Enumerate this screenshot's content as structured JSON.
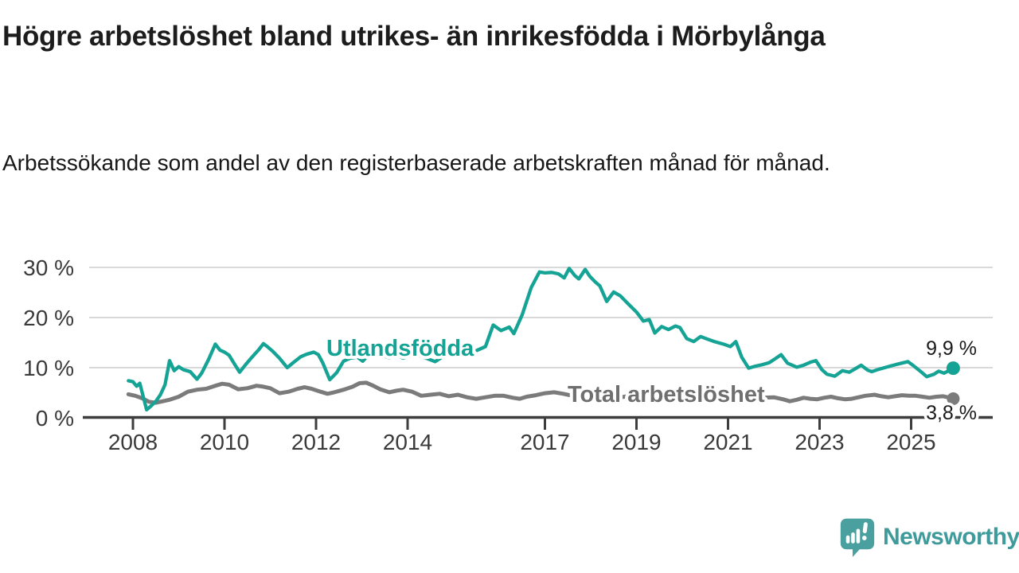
{
  "title": "Högre arbetslöshet bland utrikes- än inrikesfödda i Mörbylånga",
  "subtitle": "Arbetssökande som andel av den registerbaserade arbetskraften månad för månad.",
  "branding": {
    "name": "Newsworthy",
    "icon": "newsworthy-chart-bubble-icon",
    "icon_color": "#4a9f9f",
    "text_color": "#3f9a9b"
  },
  "chart_data": {
    "type": "line",
    "title": "Högre arbetslöshet bland utrikes- än inrikesfödda i Mörbylånga",
    "xlabel": "",
    "ylabel": "",
    "x_unit": "year (monthly observations)",
    "y_unit": "% av registerbaserad arbetskraft",
    "ylim": [
      0,
      32
    ],
    "xlim": [
      2006.9,
      2026.8
    ],
    "grid": "horizontal",
    "y_ticks": [
      {
        "value": 30,
        "label": "30 %"
      },
      {
        "value": 20,
        "label": "20 %"
      },
      {
        "value": 10,
        "label": "10 %"
      },
      {
        "value": 0,
        "label": "0 %"
      }
    ],
    "x_ticks": [
      {
        "value": 2008,
        "label": "2008"
      },
      {
        "value": 2010,
        "label": "2010"
      },
      {
        "value": 2012,
        "label": "2012"
      },
      {
        "value": 2014,
        "label": "2014"
      },
      {
        "value": 2017,
        "label": "2017"
      },
      {
        "value": 2019,
        "label": "2019"
      },
      {
        "value": 2021,
        "label": "2021"
      },
      {
        "value": 2023,
        "label": "2023"
      },
      {
        "value": 2025,
        "label": "2025"
      }
    ],
    "series": [
      {
        "name": "Utlandsfödda",
        "color": "#14a394",
        "end_value": 9.9,
        "end_value_label": "9,9 %",
        "points": [
          [
            2007.9,
            7.4
          ],
          [
            2008.0,
            7.2
          ],
          [
            2008.08,
            6.3
          ],
          [
            2008.15,
            6.9
          ],
          [
            2008.2,
            5.1
          ],
          [
            2008.3,
            1.6
          ],
          [
            2008.4,
            2.4
          ],
          [
            2008.5,
            3.3
          ],
          [
            2008.6,
            4.6
          ],
          [
            2008.7,
            6.6
          ],
          [
            2008.8,
            11.4
          ],
          [
            2008.9,
            9.4
          ],
          [
            2009.0,
            10.2
          ],
          [
            2009.1,
            9.6
          ],
          [
            2009.25,
            9.2
          ],
          [
            2009.4,
            7.7
          ],
          [
            2009.5,
            8.9
          ],
          [
            2009.65,
            11.6
          ],
          [
            2009.8,
            14.7
          ],
          [
            2009.9,
            13.5
          ],
          [
            2010.0,
            13.1
          ],
          [
            2010.1,
            12.5
          ],
          [
            2010.2,
            11.0
          ],
          [
            2010.33,
            9.1
          ],
          [
            2010.45,
            10.5
          ],
          [
            2010.6,
            12.1
          ],
          [
            2010.75,
            13.6
          ],
          [
            2010.85,
            14.8
          ],
          [
            2010.95,
            14.1
          ],
          [
            2011.05,
            13.3
          ],
          [
            2011.2,
            11.9
          ],
          [
            2011.37,
            10.0
          ],
          [
            2011.5,
            11.0
          ],
          [
            2011.67,
            12.2
          ],
          [
            2011.8,
            12.7
          ],
          [
            2011.95,
            13.1
          ],
          [
            2012.05,
            12.6
          ],
          [
            2012.15,
            10.9
          ],
          [
            2012.3,
            7.6
          ],
          [
            2012.45,
            9.0
          ],
          [
            2012.6,
            11.3
          ],
          [
            2012.75,
            11.9
          ],
          [
            2012.9,
            12.1
          ],
          [
            2013.02,
            11.3
          ],
          [
            2013.15,
            12.6
          ],
          [
            2013.3,
            13.1
          ],
          [
            2013.45,
            12.4
          ],
          [
            2013.6,
            12.0
          ],
          [
            2013.75,
            12.6
          ],
          [
            2013.9,
            11.9
          ],
          [
            2014.05,
            12.3
          ],
          [
            2014.2,
            12.7
          ],
          [
            2014.35,
            12.1
          ],
          [
            2014.6,
            11.2
          ],
          [
            2014.8,
            12.4
          ],
          [
            2015.0,
            12.9
          ],
          [
            2015.2,
            13.3
          ],
          [
            2015.35,
            12.7
          ],
          [
            2015.5,
            13.4
          ],
          [
            2015.7,
            14.2
          ],
          [
            2015.87,
            18.5
          ],
          [
            2016.04,
            17.4
          ],
          [
            2016.22,
            18.1
          ],
          [
            2016.32,
            16.8
          ],
          [
            2016.5,
            20.5
          ],
          [
            2016.7,
            26.0
          ],
          [
            2016.88,
            29.1
          ],
          [
            2017.0,
            28.9
          ],
          [
            2017.15,
            29.0
          ],
          [
            2017.3,
            28.7
          ],
          [
            2017.42,
            27.9
          ],
          [
            2017.53,
            29.8
          ],
          [
            2017.65,
            28.4
          ],
          [
            2017.74,
            27.7
          ],
          [
            2017.88,
            29.6
          ],
          [
            2017.98,
            28.2
          ],
          [
            2018.1,
            27.1
          ],
          [
            2018.2,
            26.3
          ],
          [
            2018.35,
            23.2
          ],
          [
            2018.5,
            25.1
          ],
          [
            2018.65,
            24.3
          ],
          [
            2018.8,
            22.9
          ],
          [
            2019.0,
            21.1
          ],
          [
            2019.15,
            19.3
          ],
          [
            2019.28,
            19.6
          ],
          [
            2019.4,
            16.9
          ],
          [
            2019.55,
            18.2
          ],
          [
            2019.7,
            17.6
          ],
          [
            2019.85,
            18.3
          ],
          [
            2019.95,
            18.0
          ],
          [
            2020.1,
            15.8
          ],
          [
            2020.25,
            15.2
          ],
          [
            2020.4,
            16.2
          ],
          [
            2020.55,
            15.7
          ],
          [
            2020.7,
            15.2
          ],
          [
            2020.9,
            14.7
          ],
          [
            2021.05,
            14.2
          ],
          [
            2021.17,
            15.2
          ],
          [
            2021.3,
            12.1
          ],
          [
            2021.45,
            9.9
          ],
          [
            2021.6,
            10.3
          ],
          [
            2021.75,
            10.6
          ],
          [
            2021.9,
            11.0
          ],
          [
            2022.05,
            11.9
          ],
          [
            2022.16,
            12.6
          ],
          [
            2022.3,
            10.9
          ],
          [
            2022.5,
            10.1
          ],
          [
            2022.65,
            10.5
          ],
          [
            2022.8,
            11.1
          ],
          [
            2022.92,
            11.4
          ],
          [
            2023.05,
            9.6
          ],
          [
            2023.16,
            8.7
          ],
          [
            2023.33,
            8.3
          ],
          [
            2023.5,
            9.4
          ],
          [
            2023.65,
            9.1
          ],
          [
            2023.8,
            9.9
          ],
          [
            2023.91,
            10.5
          ],
          [
            2024.05,
            9.5
          ],
          [
            2024.14,
            9.2
          ],
          [
            2024.3,
            9.7
          ],
          [
            2024.5,
            10.2
          ],
          [
            2024.7,
            10.7
          ],
          [
            2024.93,
            11.2
          ],
          [
            2025.05,
            10.4
          ],
          [
            2025.2,
            9.3
          ],
          [
            2025.34,
            8.2
          ],
          [
            2025.5,
            8.7
          ],
          [
            2025.6,
            9.3
          ],
          [
            2025.72,
            8.9
          ],
          [
            2025.82,
            9.4
          ],
          [
            2025.92,
            9.9
          ]
        ]
      },
      {
        "name": "Total arbetslöshet",
        "color": "#7b7b7b",
        "end_value": 3.8,
        "end_value_label": "3,8 %",
        "points": [
          [
            2007.9,
            4.7
          ],
          [
            2008.05,
            4.4
          ],
          [
            2008.2,
            3.9
          ],
          [
            2008.35,
            3.2
          ],
          [
            2008.5,
            3.0
          ],
          [
            2008.65,
            3.3
          ],
          [
            2008.8,
            3.6
          ],
          [
            2009.0,
            4.2
          ],
          [
            2009.2,
            5.2
          ],
          [
            2009.4,
            5.6
          ],
          [
            2009.6,
            5.8
          ],
          [
            2009.8,
            6.4
          ],
          [
            2009.95,
            6.8
          ],
          [
            2010.1,
            6.6
          ],
          [
            2010.3,
            5.7
          ],
          [
            2010.5,
            5.9
          ],
          [
            2010.7,
            6.4
          ],
          [
            2010.85,
            6.2
          ],
          [
            2011.0,
            5.9
          ],
          [
            2011.2,
            4.9
          ],
          [
            2011.4,
            5.2
          ],
          [
            2011.6,
            5.8
          ],
          [
            2011.75,
            6.1
          ],
          [
            2011.9,
            5.8
          ],
          [
            2012.1,
            5.2
          ],
          [
            2012.25,
            4.8
          ],
          [
            2012.4,
            5.1
          ],
          [
            2012.6,
            5.6
          ],
          [
            2012.8,
            6.2
          ],
          [
            2012.95,
            6.9
          ],
          [
            2013.1,
            7.0
          ],
          [
            2013.25,
            6.4
          ],
          [
            2013.4,
            5.7
          ],
          [
            2013.6,
            5.1
          ],
          [
            2013.75,
            5.4
          ],
          [
            2013.9,
            5.6
          ],
          [
            2014.1,
            5.2
          ],
          [
            2014.3,
            4.4
          ],
          [
            2014.5,
            4.6
          ],
          [
            2014.7,
            4.8
          ],
          [
            2014.9,
            4.3
          ],
          [
            2015.1,
            4.6
          ],
          [
            2015.3,
            4.1
          ],
          [
            2015.5,
            3.8
          ],
          [
            2015.7,
            4.1
          ],
          [
            2015.9,
            4.4
          ],
          [
            2016.1,
            4.4
          ],
          [
            2016.3,
            4.0
          ],
          [
            2016.45,
            3.8
          ],
          [
            2016.6,
            4.2
          ],
          [
            2016.8,
            4.5
          ],
          [
            2017.0,
            4.9
          ],
          [
            2017.2,
            5.1
          ],
          [
            2017.4,
            4.8
          ],
          [
            2017.6,
            4.4
          ],
          [
            2017.8,
            4.6
          ],
          [
            2018.0,
            4.9
          ],
          [
            2018.2,
            4.6
          ],
          [
            2018.4,
            4.2
          ],
          [
            2018.6,
            4.0
          ],
          [
            2018.8,
            4.3
          ],
          [
            2019.0,
            4.5
          ],
          [
            2019.2,
            4.2
          ],
          [
            2019.4,
            3.9
          ],
          [
            2019.6,
            3.8
          ],
          [
            2019.8,
            4.1
          ],
          [
            2020.0,
            4.4
          ],
          [
            2020.25,
            5.2
          ],
          [
            2020.5,
            5.5
          ],
          [
            2020.75,
            5.2
          ],
          [
            2021.0,
            5.0
          ],
          [
            2021.25,
            4.6
          ],
          [
            2021.5,
            4.2
          ],
          [
            2021.75,
            4.0
          ],
          [
            2022.0,
            4.1
          ],
          [
            2022.2,
            3.7
          ],
          [
            2022.35,
            3.3
          ],
          [
            2022.5,
            3.6
          ],
          [
            2022.65,
            4.0
          ],
          [
            2022.8,
            3.8
          ],
          [
            2022.95,
            3.7
          ],
          [
            2023.1,
            4.0
          ],
          [
            2023.25,
            4.2
          ],
          [
            2023.4,
            3.9
          ],
          [
            2023.55,
            3.7
          ],
          [
            2023.7,
            3.8
          ],
          [
            2023.85,
            4.1
          ],
          [
            2024.0,
            4.4
          ],
          [
            2024.2,
            4.6
          ],
          [
            2024.35,
            4.3
          ],
          [
            2024.5,
            4.1
          ],
          [
            2024.65,
            4.3
          ],
          [
            2024.8,
            4.5
          ],
          [
            2024.95,
            4.4
          ],
          [
            2025.1,
            4.4
          ],
          [
            2025.25,
            4.2
          ],
          [
            2025.4,
            4.0
          ],
          [
            2025.55,
            4.2
          ],
          [
            2025.7,
            4.3
          ],
          [
            2025.8,
            4.1
          ],
          [
            2025.92,
            3.8
          ]
        ]
      }
    ],
    "legend_position": "inline-labels-on-lines",
    "style": {
      "grid_color": "#d9d9d9",
      "axis_color": "#3d3d3d",
      "tick_label_color": "#3a3a3a",
      "value_label_color": "#1a1a1a"
    }
  }
}
